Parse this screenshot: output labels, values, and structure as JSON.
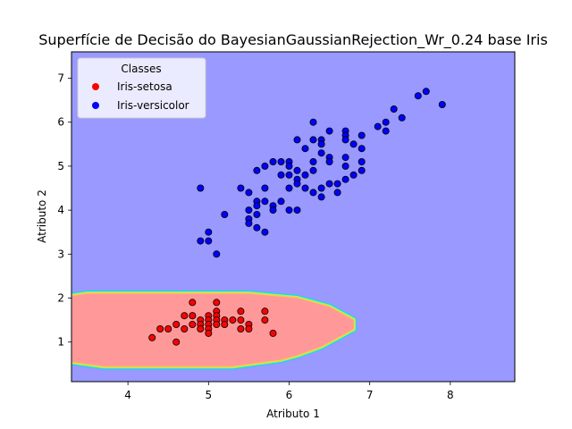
{
  "chart_data": {
    "type": "scatter",
    "title": "Superfície de Decisão do BayesianGaussianRejection_Wr_0.24 base Iris",
    "xlabel": "Atributo 1",
    "ylabel": "Atributo 2",
    "xlim": [
      3.3,
      8.8
    ],
    "ylim": [
      0.1,
      7.6
    ],
    "xticks": [
      4,
      5,
      6,
      7,
      8
    ],
    "yticks": [
      1,
      2,
      3,
      4,
      5,
      6,
      7
    ],
    "grid": false,
    "legend": {
      "title": "Classes",
      "placement": "top-left",
      "entries": [
        {
          "name": "Iris-setosa",
          "color": "#ff0000"
        },
        {
          "name": "Iris-versicolor",
          "color": "#0000ff"
        }
      ]
    },
    "background_color": "#9999ff",
    "region": {
      "label": "Iris-setosa",
      "fill": "#ff9999",
      "boundary_colors": [
        "#00ddff",
        "#88ff66",
        "#ffcc44"
      ],
      "outline": [
        [
          3.3,
          2.05
        ],
        [
          3.5,
          2.1
        ],
        [
          5.5,
          2.1
        ],
        [
          5.8,
          2.05
        ],
        [
          6.1,
          2.0
        ],
        [
          6.3,
          1.9
        ],
        [
          6.5,
          1.8
        ],
        [
          6.6,
          1.7
        ],
        [
          6.8,
          1.5
        ],
        [
          6.8,
          1.3
        ],
        [
          6.6,
          1.1
        ],
        [
          6.4,
          0.9
        ],
        [
          6.1,
          0.7
        ],
        [
          5.9,
          0.6
        ],
        [
          5.5,
          0.5
        ],
        [
          5.3,
          0.45
        ],
        [
          3.7,
          0.45
        ],
        [
          3.5,
          0.5
        ],
        [
          3.3,
          0.55
        ]
      ]
    },
    "series": [
      {
        "name": "Iris-setosa",
        "color": "#ff0000",
        "points": [
          [
            4.3,
            1.1
          ],
          [
            4.4,
            1.3
          ],
          [
            4.5,
            1.3
          ],
          [
            4.6,
            1.4
          ],
          [
            4.6,
            1.0
          ],
          [
            4.7,
            1.6
          ],
          [
            4.7,
            1.3
          ],
          [
            4.8,
            1.6
          ],
          [
            4.8,
            1.4
          ],
          [
            4.8,
            1.9
          ],
          [
            4.8,
            1.6
          ],
          [
            4.9,
            1.5
          ],
          [
            4.9,
            1.4
          ],
          [
            4.9,
            1.3
          ],
          [
            5.0,
            1.6
          ],
          [
            5.0,
            1.5
          ],
          [
            5.0,
            1.4
          ],
          [
            5.0,
            1.3
          ],
          [
            5.0,
            1.2
          ],
          [
            5.1,
            1.9
          ],
          [
            5.1,
            1.7
          ],
          [
            5.1,
            1.6
          ],
          [
            5.1,
            1.5
          ],
          [
            5.1,
            1.4
          ],
          [
            5.2,
            1.5
          ],
          [
            5.2,
            1.4
          ],
          [
            5.3,
            1.5
          ],
          [
            5.4,
            1.7
          ],
          [
            5.4,
            1.5
          ],
          [
            5.4,
            1.3
          ],
          [
            5.5,
            1.4
          ],
          [
            5.5,
            1.3
          ],
          [
            5.7,
            1.7
          ],
          [
            5.7,
            1.5
          ],
          [
            5.8,
            1.2
          ]
        ]
      },
      {
        "name": "Iris-versicolor",
        "color": "#0000ff",
        "points": [
          [
            4.9,
            4.5
          ],
          [
            4.9,
            3.3
          ],
          [
            5.0,
            3.5
          ],
          [
            5.0,
            3.3
          ],
          [
            5.1,
            3.0
          ],
          [
            5.2,
            3.9
          ],
          [
            5.4,
            4.5
          ],
          [
            5.5,
            4.4
          ],
          [
            5.5,
            4.0
          ],
          [
            5.5,
            3.8
          ],
          [
            5.5,
            3.7
          ],
          [
            5.6,
            4.9
          ],
          [
            5.6,
            4.2
          ],
          [
            5.6,
            4.1
          ],
          [
            5.6,
            3.9
          ],
          [
            5.6,
            3.6
          ],
          [
            5.7,
            5.0
          ],
          [
            5.7,
            4.5
          ],
          [
            5.7,
            4.2
          ],
          [
            5.7,
            3.5
          ],
          [
            5.8,
            5.1
          ],
          [
            5.8,
            4.1
          ],
          [
            5.8,
            4.0
          ],
          [
            5.9,
            5.1
          ],
          [
            5.9,
            4.8
          ],
          [
            5.9,
            4.2
          ],
          [
            6.0,
            5.1
          ],
          [
            6.0,
            5.0
          ],
          [
            6.0,
            4.8
          ],
          [
            6.0,
            4.5
          ],
          [
            6.0,
            4.0
          ],
          [
            6.1,
            5.6
          ],
          [
            6.1,
            4.9
          ],
          [
            6.1,
            4.7
          ],
          [
            6.1,
            4.6
          ],
          [
            6.1,
            4.0
          ],
          [
            6.2,
            5.4
          ],
          [
            6.2,
            4.8
          ],
          [
            6.2,
            4.5
          ],
          [
            6.3,
            6.0
          ],
          [
            6.3,
            5.6
          ],
          [
            6.3,
            5.1
          ],
          [
            6.3,
            4.9
          ],
          [
            6.3,
            4.4
          ],
          [
            6.4,
            5.6
          ],
          [
            6.4,
            5.5
          ],
          [
            6.4,
            5.3
          ],
          [
            6.4,
            4.5
          ],
          [
            6.4,
            4.3
          ],
          [
            6.5,
            5.8
          ],
          [
            6.5,
            5.2
          ],
          [
            6.5,
            5.1
          ],
          [
            6.5,
            4.6
          ],
          [
            6.6,
            4.6
          ],
          [
            6.6,
            4.4
          ],
          [
            6.7,
            5.8
          ],
          [
            6.7,
            5.7
          ],
          [
            6.7,
            5.6
          ],
          [
            6.7,
            5.2
          ],
          [
            6.7,
            5.0
          ],
          [
            6.7,
            4.7
          ],
          [
            6.8,
            5.5
          ],
          [
            6.8,
            4.8
          ],
          [
            6.9,
            5.7
          ],
          [
            6.9,
            5.4
          ],
          [
            6.9,
            5.1
          ],
          [
            6.9,
            4.9
          ],
          [
            7.1,
            5.9
          ],
          [
            7.2,
            6.0
          ],
          [
            7.2,
            5.8
          ],
          [
            7.3,
            6.3
          ],
          [
            7.4,
            6.1
          ],
          [
            7.6,
            6.6
          ],
          [
            7.7,
            6.7
          ],
          [
            7.9,
            6.4
          ]
        ]
      }
    ]
  }
}
